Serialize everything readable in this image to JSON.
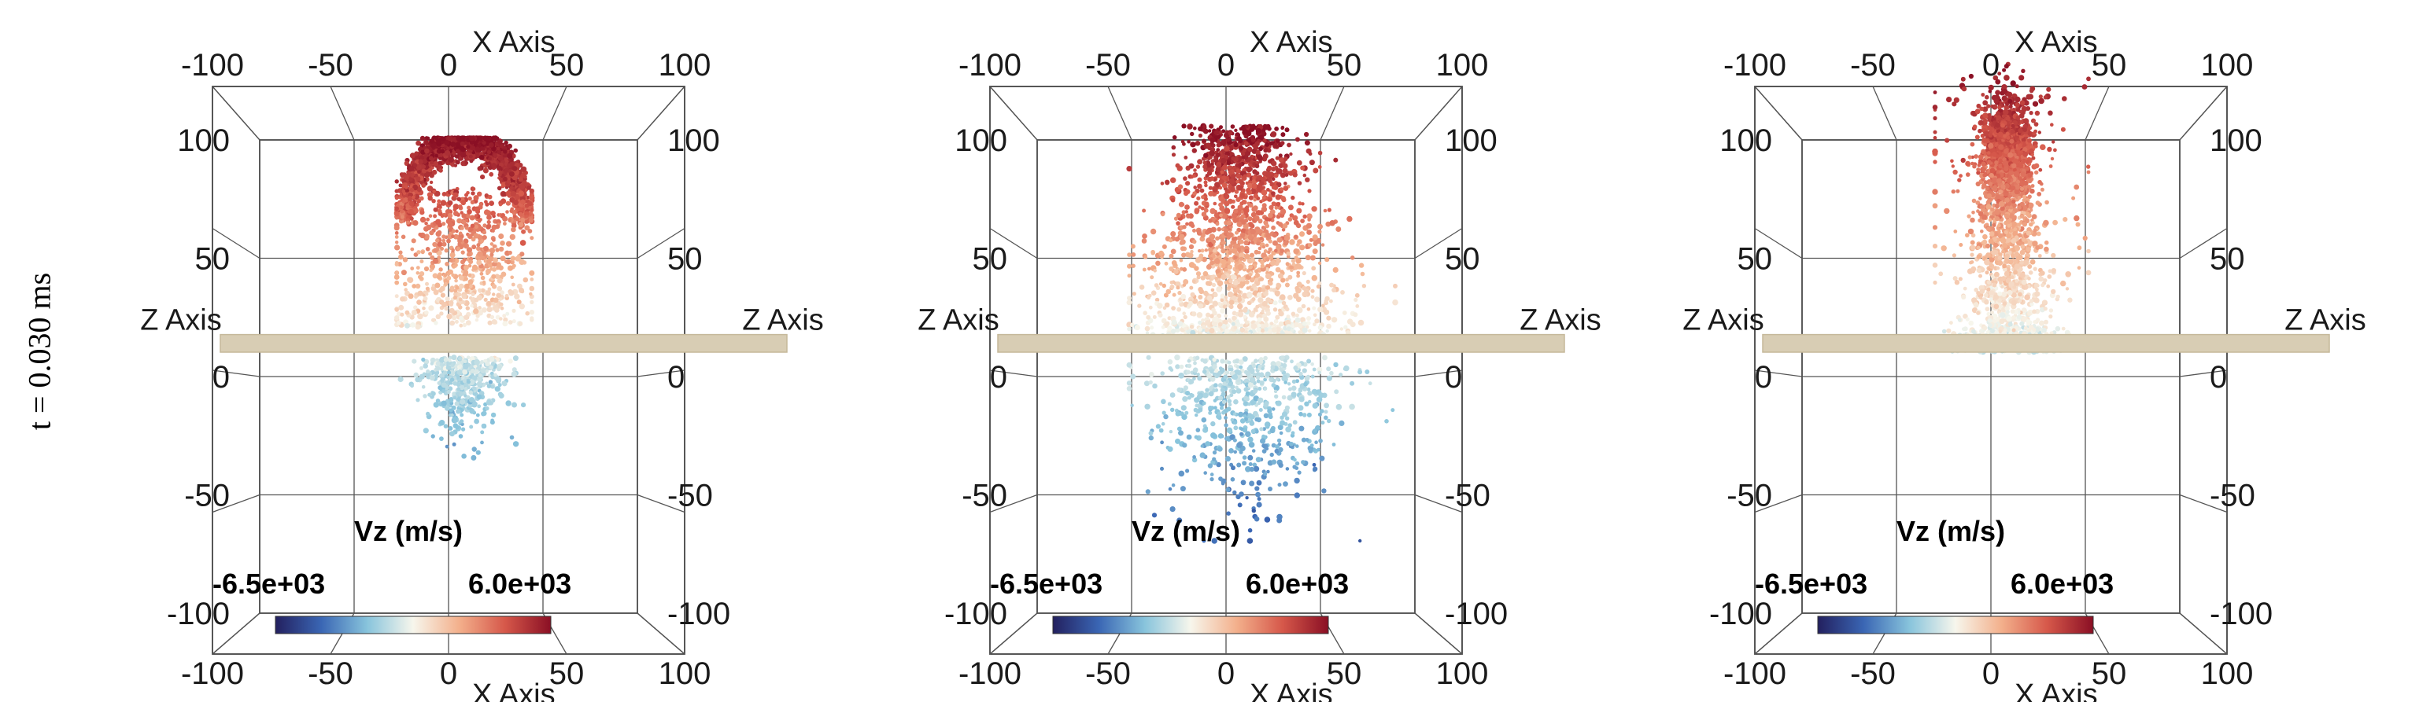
{
  "row_label": "t = 0.030 ms",
  "colors": {
    "colormap": [
      "#23205f",
      "#3a66b4",
      "#88c4dc",
      "#f7f6ec",
      "#f3b08c",
      "#d6584a",
      "#8a0f24"
    ],
    "plate": "#d8cdb4"
  },
  "chart_data": [
    {
      "type": "scatter",
      "title": "",
      "x_axis_label": "X Axis",
      "z_axis_label": "Z Axis",
      "xlim": [
        -100,
        100
      ],
      "ylim": [
        -100,
        100
      ],
      "x_ticks": [
        "-100",
        "-50",
        "0",
        "50",
        "100"
      ],
      "y_ticks": [
        "100",
        "50",
        "0",
        "-50",
        "-100"
      ],
      "colorbar": {
        "title": "Vz (m/s)",
        "min_label": "-6.5e+03",
        "max_label": "6.0e+03",
        "min": -6500,
        "max": 6000
      },
      "plate": {
        "y_min": 10,
        "y_max": 17
      },
      "particle_cloud": {
        "description_shape": "hollow hemispherical shell with thin spray below plate",
        "x_range": [
          -33,
          33
        ],
        "y_range": [
          -32,
          95
        ],
        "dense_cap_y": [
          75,
          95
        ]
      }
    },
    {
      "type": "scatter",
      "title": "",
      "x_axis_label": "X Axis",
      "z_axis_label": "Z Axis",
      "xlim": [
        -100,
        100
      ],
      "ylim": [
        -100,
        100
      ],
      "x_ticks": [
        "-100",
        "-50",
        "0",
        "50",
        "100"
      ],
      "y_ticks": [
        "100",
        "50",
        "0",
        "-50",
        "-100"
      ],
      "colorbar": {
        "title": "Vz (m/s)",
        "min_label": "-6.5e+03",
        "max_label": "6.0e+03",
        "min": -6500,
        "max": 6000
      },
      "plate": {
        "y_min": 10,
        "y_max": 17
      },
      "particle_cloud": {
        "description_shape": "dense bulbous jet above plate and wide spray below",
        "x_range": [
          -55,
          75
        ],
        "y_range": [
          -65,
          110
        ],
        "dense_cap_y": [
          20,
          100
        ]
      }
    },
    {
      "type": "scatter",
      "title": "",
      "x_axis_label": "X Axis",
      "z_axis_label": "Z Axis",
      "xlim": [
        -100,
        100
      ],
      "ylim": [
        -100,
        100
      ],
      "x_ticks": [
        "-100",
        "-50",
        "0",
        "50",
        "100"
      ],
      "y_ticks": [
        "100",
        "50",
        "0",
        "-50",
        "-100"
      ],
      "colorbar": {
        "title": "Vz (m/s)",
        "min_label": "-6.5e+03",
        "max_label": "6.0e+03",
        "min": -6500,
        "max": 6000
      },
      "plate": {
        "y_min": 10,
        "y_max": 17
      },
      "particle_cloud": {
        "description_shape": "narrow tall jet with dense head near top",
        "x_range": [
          -35,
          40
        ],
        "y_range": [
          -12,
          125
        ],
        "dense_cap_y": [
          85,
          120
        ]
      }
    }
  ]
}
